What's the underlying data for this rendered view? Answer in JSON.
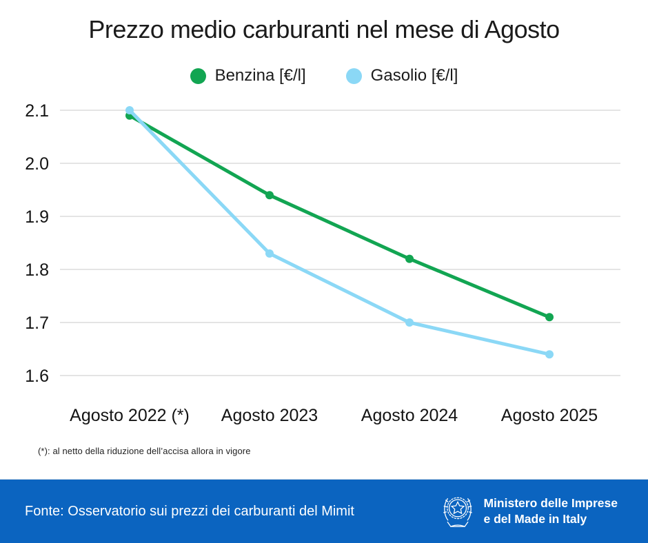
{
  "page": {
    "title": "Prezzo medio carburanti nel mese di Agosto",
    "footnote": "(*): al netto della riduzione dell’accisa allora in vigore",
    "footer": {
      "source": "Fonte: Osservatorio sui prezzi dei carburanti del Mimit",
      "ministry_line1": "Ministero delle Imprese",
      "ministry_line2": "e del Made in Italy",
      "bar_color": "#0b64c0"
    }
  },
  "chart_data": {
    "type": "line",
    "title": "Prezzo medio carburanti nel mese di Agosto",
    "categories": [
      "Agosto 2022 (*)",
      "Agosto 2023",
      "Agosto 2024",
      "Agosto 2025"
    ],
    "series": [
      {
        "name": "Benzina [€/l]",
        "color": "#12a552",
        "values": [
          2.09,
          1.94,
          1.82,
          1.71
        ]
      },
      {
        "name": "Gasolio [€/l]",
        "color": "#8bd8f6",
        "values": [
          2.1,
          1.83,
          1.7,
          1.64
        ]
      }
    ],
    "y_ticks": [
      2.1,
      2.0,
      1.9,
      1.8,
      1.7,
      1.6
    ],
    "ylim": [
      1.55,
      2.12
    ],
    "xlabel": "",
    "ylabel": "",
    "grid": true,
    "gridline_color": "#dcdcdc",
    "tick_color": "#141414",
    "legend_position": "top"
  }
}
